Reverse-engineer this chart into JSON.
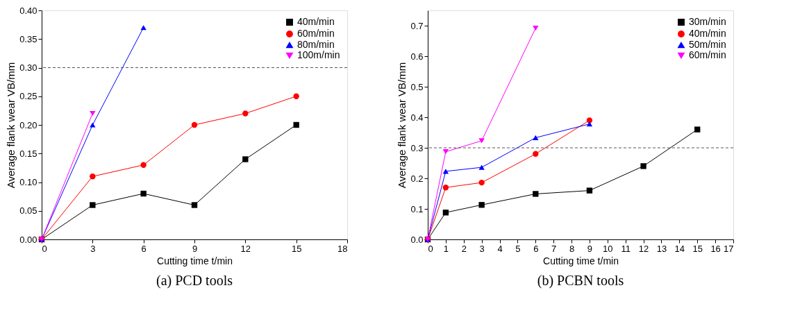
{
  "chart_data": [
    {
      "type": "line",
      "title": "(a) PCD tools",
      "xlabel": "Cutting time t/min",
      "ylabel": "Average flank wear VB/mm",
      "legend": "top right",
      "grid": false,
      "line_style": "solid",
      "xlim": [
        0,
        18
      ],
      "xticks": [
        0,
        3,
        6,
        9,
        12,
        15,
        18
      ],
      "ylim": [
        0,
        0.4
      ],
      "yticks": [
        {
          "value": 0,
          "label": "0.00"
        },
        {
          "value": 0.05,
          "label": "0.05"
        },
        {
          "value": 0.1,
          "label": "0.10"
        },
        {
          "value": 0.15,
          "label": "0.15"
        },
        {
          "value": 0.2,
          "label": "0.20"
        },
        {
          "value": 0.25,
          "label": "0.25"
        },
        {
          "value": 0.3,
          "label": "0.30"
        },
        {
          "value": 0.35,
          "label": "0.35"
        },
        {
          "value": 0.4,
          "label": "0.40"
        }
      ],
      "ref_lines": [
        {
          "axis": "y",
          "value": 0.3,
          "color": "#555555",
          "line_style": "dashed"
        }
      ],
      "series": [
        {
          "name": "40m/min",
          "color": "#000000",
          "marker": "square",
          "x": [
            0,
            3,
            6,
            9,
            12,
            15
          ],
          "values": [
            0,
            0.06,
            0.08,
            0.06,
            0.14,
            0.2
          ]
        },
        {
          "name": "60m/min",
          "color": "#ff0000",
          "marker": "circle",
          "x": [
            0,
            3,
            6,
            9,
            12,
            15
          ],
          "values": [
            0,
            0.11,
            0.13,
            0.2,
            0.22,
            0.25
          ]
        },
        {
          "name": "80m/min",
          "color": "#0000ff",
          "marker": "triangle",
          "x": [
            0,
            3,
            6
          ],
          "values": [
            0,
            0.2,
            0.37
          ]
        },
        {
          "name": "100m/min",
          "color": "#ff00ff",
          "marker": "triangle_down",
          "x": [
            0,
            3
          ],
          "values": [
            0,
            0.22
          ]
        }
      ]
    },
    {
      "type": "line",
      "title": "(b) PCBN tools",
      "xlabel": "Cutting time t/min",
      "ylabel": "Average flank wear VB/mm",
      "legend": "top right",
      "grid": false,
      "line_style": "solid",
      "xlim": [
        0,
        17
      ],
      "xticks": [
        0,
        1,
        2,
        3,
        4,
        5,
        6,
        7,
        8,
        9,
        10,
        11,
        12,
        13,
        14,
        15,
        16,
        17
      ],
      "ylim": [
        0,
        0.75
      ],
      "yticks": [
        {
          "value": 0,
          "label": "0.0"
        },
        0.1,
        0.2,
        0.3,
        0.4,
        0.5,
        0.6,
        0.7
      ],
      "ref_lines": [
        {
          "axis": "y",
          "value": 0.3,
          "color": "#555555",
          "line_style": "dashed"
        }
      ],
      "series": [
        {
          "name": "30m/min",
          "color": "#000000",
          "marker": "square",
          "x": [
            0,
            1,
            3,
            6,
            9,
            12,
            15
          ],
          "values": [
            0,
            0.088,
            0.113,
            0.149,
            0.16,
            0.24,
            0.36
          ]
        },
        {
          "name": "40m/min",
          "color": "#ff0000",
          "marker": "circle",
          "x": [
            0,
            1,
            3,
            6,
            9
          ],
          "values": [
            0,
            0.17,
            0.186,
            0.28,
            0.39
          ]
        },
        {
          "name": "50m/min",
          "color": "#0000ff",
          "marker": "triangle",
          "x": [
            0,
            1,
            3,
            6,
            9
          ],
          "values": [
            0,
            0.223,
            0.236,
            0.333,
            0.378
          ]
        },
        {
          "name": "60m/min",
          "color": "#ff00ff",
          "marker": "triangle_down",
          "x": [
            0,
            1,
            3,
            6
          ],
          "values": [
            0,
            0.287,
            0.323,
            0.692
          ]
        }
      ]
    }
  ]
}
